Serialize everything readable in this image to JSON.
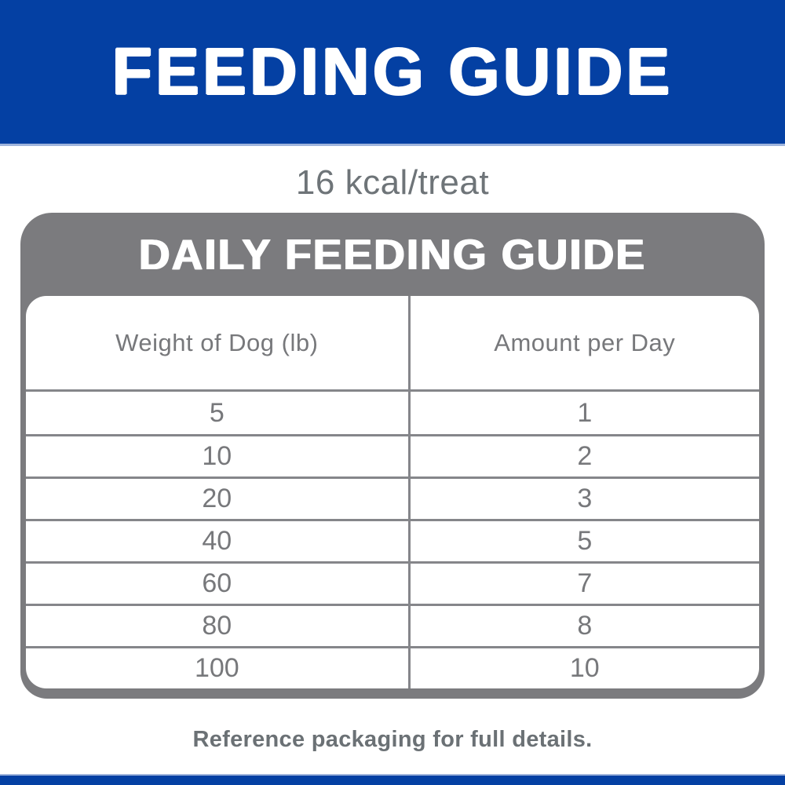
{
  "header": {
    "title": "FEEDING GUIDE"
  },
  "kcal_text": "16 kcal/treat",
  "guide": {
    "title": "DAILY FEEDING GUIDE",
    "table": {
      "columns": [
        "Weight of Dog (lb)",
        "Amount per Day"
      ],
      "rows": [
        [
          "5",
          "1"
        ],
        [
          "10",
          "2"
        ],
        [
          "20",
          "3"
        ],
        [
          "40",
          "5"
        ],
        [
          "60",
          "7"
        ],
        [
          "80",
          "8"
        ],
        [
          "100",
          "10"
        ]
      ]
    }
  },
  "footer_note": "Reference packaging for full details.",
  "colors": {
    "brand_blue": "#0440A3",
    "accent_light_blue": "#9FB4DC",
    "box_gray": "#7B7B7E",
    "line_gray": "#85868A",
    "text_gray": "#77787B",
    "note_gray": "#6B7175"
  }
}
